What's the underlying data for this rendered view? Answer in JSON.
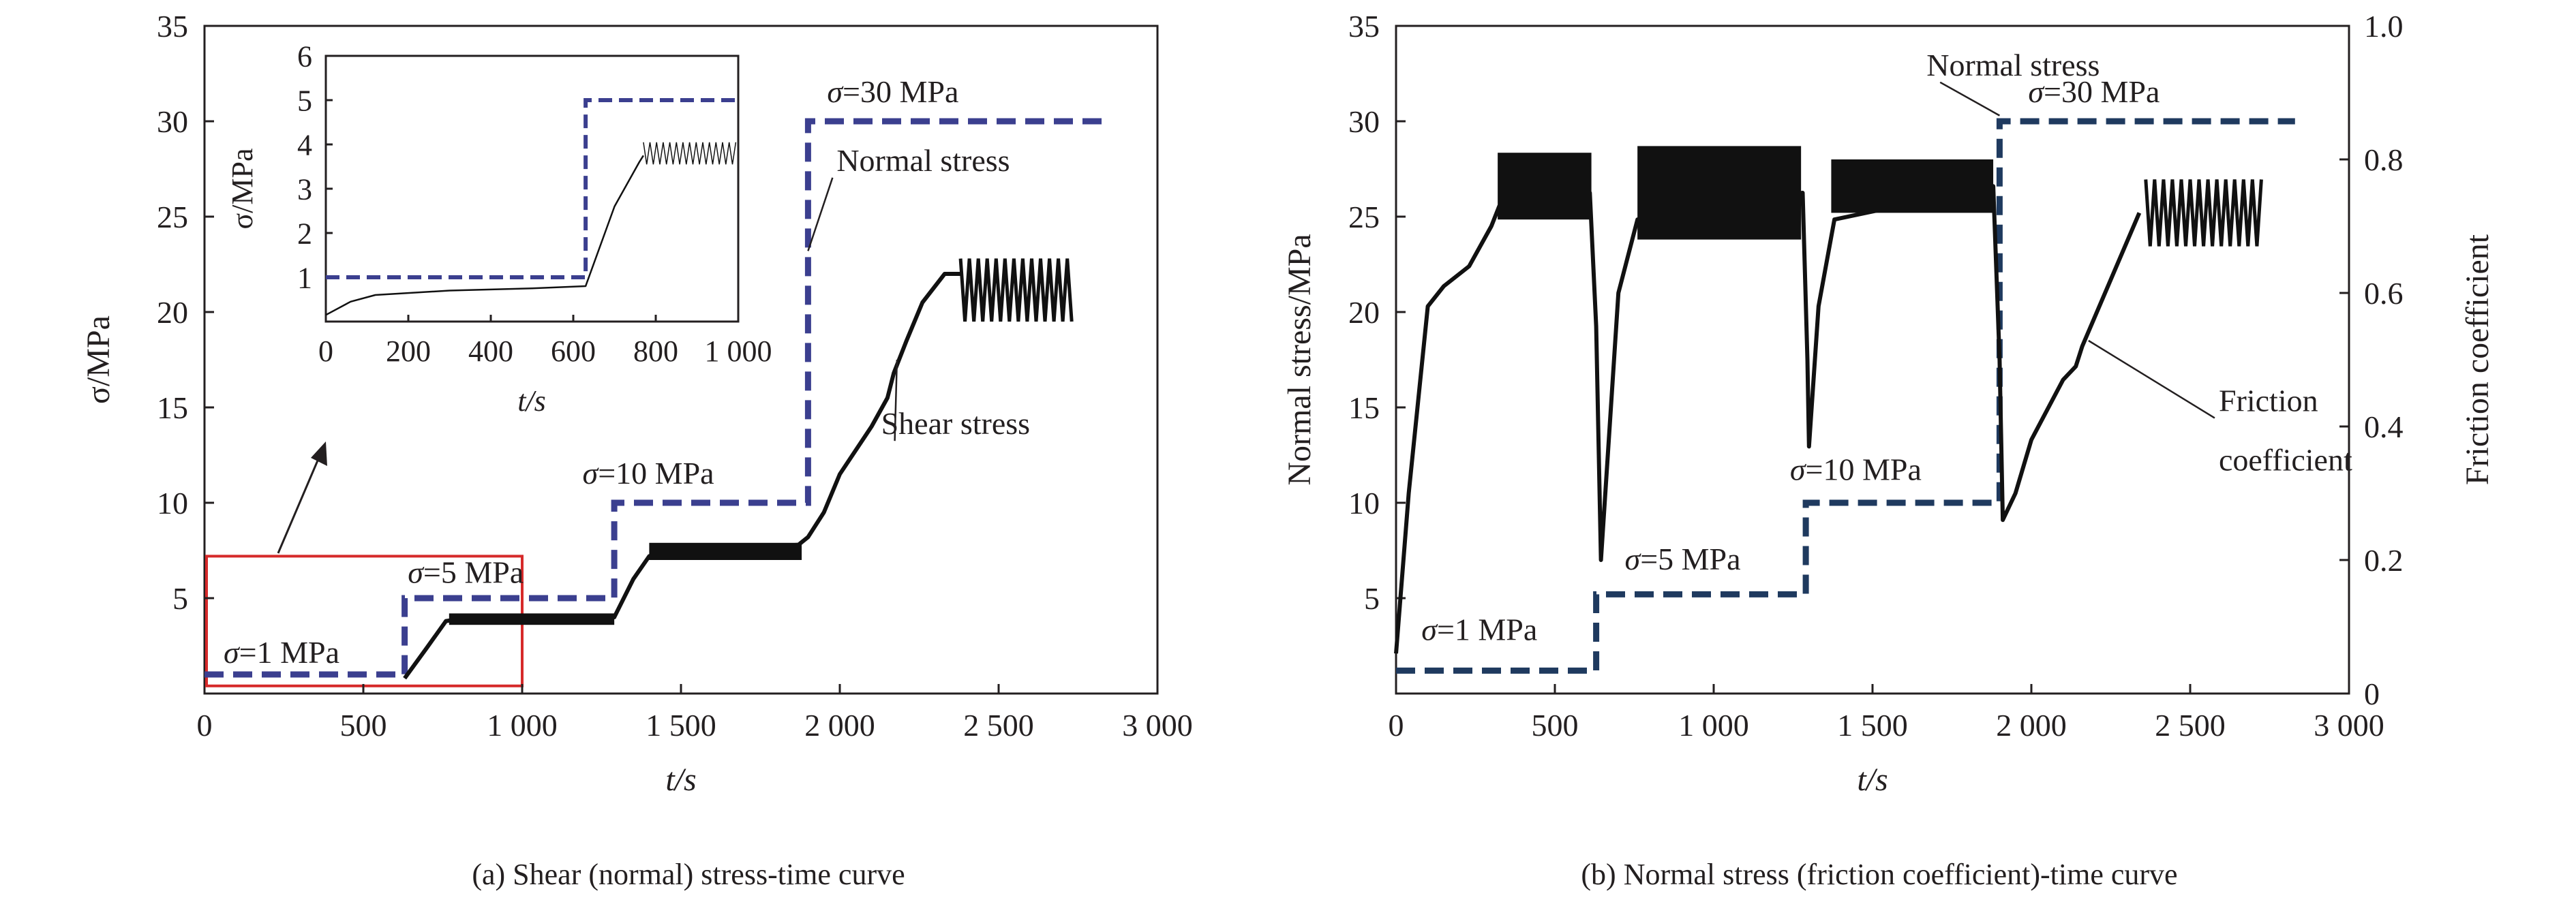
{
  "panels": {
    "a": {
      "caption": "(a) Shear (normal) stress-time curve"
    },
    "b": {
      "caption": "(b) Normal stress (friction coefficient)-time curve"
    }
  },
  "chart_data": [
    {
      "type": "line",
      "xlabel": "t/s",
      "ylabel": "σ/MPa",
      "xlim": [
        0,
        3000
      ],
      "ylim": [
        0,
        35
      ],
      "x_ticks": [
        "0",
        "500",
        "1 000",
        "1 500",
        "2 000",
        "2 500",
        "3 000"
      ],
      "x_tick_values": [
        0,
        500,
        1000,
        1500,
        2000,
        2500,
        3000
      ],
      "y_ticks": [
        "5",
        "10",
        "15",
        "20",
        "25",
        "30",
        "35"
      ],
      "y_tick_values": [
        5,
        10,
        15,
        20,
        25,
        30,
        35
      ],
      "series": [
        {
          "name": "Normal stress",
          "style": "dashed",
          "color": "#3b3f8f",
          "points": [
            [
              0,
              1
            ],
            [
              630,
              1
            ],
            [
              630,
              5
            ],
            [
              1290,
              5
            ],
            [
              1290,
              10
            ],
            [
              1900,
              10
            ],
            [
              1900,
              30
            ],
            [
              2830,
              30
            ]
          ]
        },
        {
          "name": "Shear stress",
          "style": "solid",
          "color": "#111111",
          "points": [
            [
              630,
              0.8
            ],
            [
              700,
              2.4
            ],
            [
              760,
              3.8
            ],
            [
              800,
              3.9
            ],
            [
              1000,
              3.9
            ],
            [
              1200,
              4.0
            ],
            [
              1290,
              4.0
            ],
            [
              1350,
              6.0
            ],
            [
              1400,
              7.2
            ],
            [
              1500,
              7.4
            ],
            [
              1700,
              7.6
            ],
            [
              1870,
              7.8
            ],
            [
              1900,
              8.2
            ],
            [
              1950,
              9.5
            ],
            [
              2000,
              11.5
            ],
            [
              2100,
              14.0
            ],
            [
              2150,
              15.5
            ],
            [
              2170,
              16.8
            ],
            [
              2210,
              18.5
            ],
            [
              2260,
              20.5
            ],
            [
              2330,
              22.0
            ],
            [
              2380,
              22.0
            ]
          ],
          "oscillation": {
            "x_start": 2380,
            "x_end": 2730,
            "low": 19.5,
            "high": 22.8
          },
          "band_segments": [
            {
              "x_start": 770,
              "x_end": 1290,
              "low": 3.6,
              "high": 4.2
            },
            {
              "x_start": 1400,
              "x_end": 1880,
              "low": 7.0,
              "high": 7.9
            }
          ]
        }
      ],
      "annotations": [
        {
          "text": "σ=1 MPa",
          "x": 60,
          "y": 1.6
        },
        {
          "text": "σ=5 MPa",
          "x": 640,
          "y": 5.8
        },
        {
          "text": "σ=10 MPa",
          "x": 1190,
          "y": 11.0
        },
        {
          "text": "σ=30 MPa",
          "x": 1960,
          "y": 31.0
        },
        {
          "text": "Normal stress",
          "x": 1990,
          "y": 27.4,
          "pointer_to": [
            1900,
            23.2
          ]
        },
        {
          "text": "Shear stress",
          "x": 2130,
          "y": 13.6,
          "pointer_to": [
            2180,
            17.5
          ]
        }
      ],
      "highlight_box": {
        "x_range": [
          0,
          1000
        ],
        "y_range": [
          0.4,
          7.2
        ]
      },
      "inset": {
        "xlabel": "t/s",
        "ylabel": "σ/MPa",
        "xlim": [
          0,
          1000
        ],
        "ylim": [
          0,
          6
        ],
        "x_ticks": [
          "0",
          "200",
          "400",
          "600",
          "800",
          "1 000"
        ],
        "x_tick_values": [
          0,
          200,
          400,
          600,
          800,
          1000
        ],
        "y_ticks": [
          "1",
          "2",
          "3",
          "4",
          "5",
          "6"
        ],
        "y_tick_values": [
          1,
          2,
          3,
          4,
          5,
          6
        ],
        "series": [
          {
            "name": "Normal stress",
            "style": "dashed",
            "color": "#3b3f8f",
            "points": [
              [
                0,
                1
              ],
              [
                630,
                1
              ],
              [
                630,
                5
              ],
              [
                1000,
                5
              ]
            ]
          },
          {
            "name": "Shear stress",
            "style": "solid",
            "color": "#111111",
            "points": [
              [
                0,
                0.15
              ],
              [
                60,
                0.45
              ],
              [
                120,
                0.6
              ],
              [
                300,
                0.7
              ],
              [
                500,
                0.75
              ],
              [
                630,
                0.8
              ],
              [
                700,
                2.6
              ],
              [
                760,
                3.6
              ],
              [
                770,
                3.75
              ]
            ],
            "oscillation": {
              "x_start": 770,
              "x_end": 1000,
              "low": 3.55,
              "high": 4.05
            }
          }
        ]
      }
    },
    {
      "type": "line",
      "xlabel": "t/s",
      "ylabel": "Normal stress/MPa",
      "y2label": "Friction coefficient",
      "xlim": [
        0,
        3000
      ],
      "ylim": [
        0,
        35
      ],
      "y2lim": [
        0,
        1.0
      ],
      "x_ticks": [
        "0",
        "500",
        "1 000",
        "1 500",
        "2 000",
        "2 500",
        "3 000"
      ],
      "x_tick_values": [
        0,
        500,
        1000,
        1500,
        2000,
        2500,
        3000
      ],
      "y_ticks": [
        "5",
        "10",
        "15",
        "20",
        "25",
        "30",
        "35"
      ],
      "y_tick_values": [
        5,
        10,
        15,
        20,
        25,
        30,
        35
      ],
      "y2_ticks": [
        "0",
        "0.2",
        "0.4",
        "0.6",
        "0.8",
        "1.0"
      ],
      "y2_tick_values": [
        0,
        0.2,
        0.4,
        0.6,
        0.8,
        1.0
      ],
      "series": [
        {
          "name": "Normal stress",
          "style": "dashed",
          "color": "#1f3a5f",
          "axis": "left",
          "points": [
            [
              0,
              1.2
            ],
            [
              630,
              1.2
            ],
            [
              630,
              5.2
            ],
            [
              1290,
              5.2
            ],
            [
              1290,
              10
            ],
            [
              1900,
              10
            ],
            [
              1900,
              30
            ],
            [
              2830,
              30
            ]
          ]
        },
        {
          "name": "Friction coefficient",
          "style": "solid",
          "color": "#111111",
          "axis": "right",
          "points": [
            [
              0,
              0.06
            ],
            [
              40,
              0.3
            ],
            [
              100,
              0.58
            ],
            [
              150,
              0.61
            ],
            [
              230,
              0.64
            ],
            [
              300,
              0.7
            ],
            [
              325,
              0.73
            ],
            [
              610,
              0.75
            ],
            [
              630,
              0.55
            ],
            [
              645,
              0.2
            ],
            [
              700,
              0.6
            ],
            [
              760,
              0.71
            ],
            [
              1280,
              0.75
            ],
            [
              1295,
              0.5
            ],
            [
              1300,
              0.37
            ],
            [
              1330,
              0.58
            ],
            [
              1380,
              0.71
            ],
            [
              1880,
              0.76
            ],
            [
              1900,
              0.5
            ],
            [
              1910,
              0.26
            ],
            [
              1950,
              0.3
            ],
            [
              2000,
              0.38
            ],
            [
              2100,
              0.47
            ],
            [
              2140,
              0.49
            ],
            [
              2160,
              0.52
            ],
            [
              2250,
              0.62
            ],
            [
              2340,
              0.72
            ]
          ],
          "oscillation": {
            "x_start": 2360,
            "x_end": 2730,
            "low": 0.67,
            "high": 0.77
          },
          "band_segments": [
            {
              "x_start": 320,
              "x_end": 615,
              "low": 0.71,
              "high": 0.81
            },
            {
              "x_start": 760,
              "x_end": 1275,
              "low": 0.68,
              "high": 0.82
            },
            {
              "x_start": 1370,
              "x_end": 1880,
              "low": 0.72,
              "high": 0.8
            }
          ]
        }
      ],
      "annotations": [
        {
          "text": "σ=1 MPa",
          "x": 80,
          "y": 2.8
        },
        {
          "text": "σ=5 MPa",
          "x": 720,
          "y": 6.5
        },
        {
          "text": "σ=10 MPa",
          "x": 1240,
          "y": 11.2
        },
        {
          "text": "σ=30 MPa",
          "x": 1990,
          "y": 31.0
        },
        {
          "text": "Normal stress",
          "x": 1670,
          "y": 32.4,
          "pointer_to": [
            1900,
            30.3
          ]
        },
        {
          "text": "Friction",
          "x": 2590,
          "y": 14.8,
          "pointer_to": [
            2180,
            18.5
          ]
        },
        {
          "text": "coefficient",
          "x": 2590,
          "y": 11.7
        }
      ]
    }
  ]
}
